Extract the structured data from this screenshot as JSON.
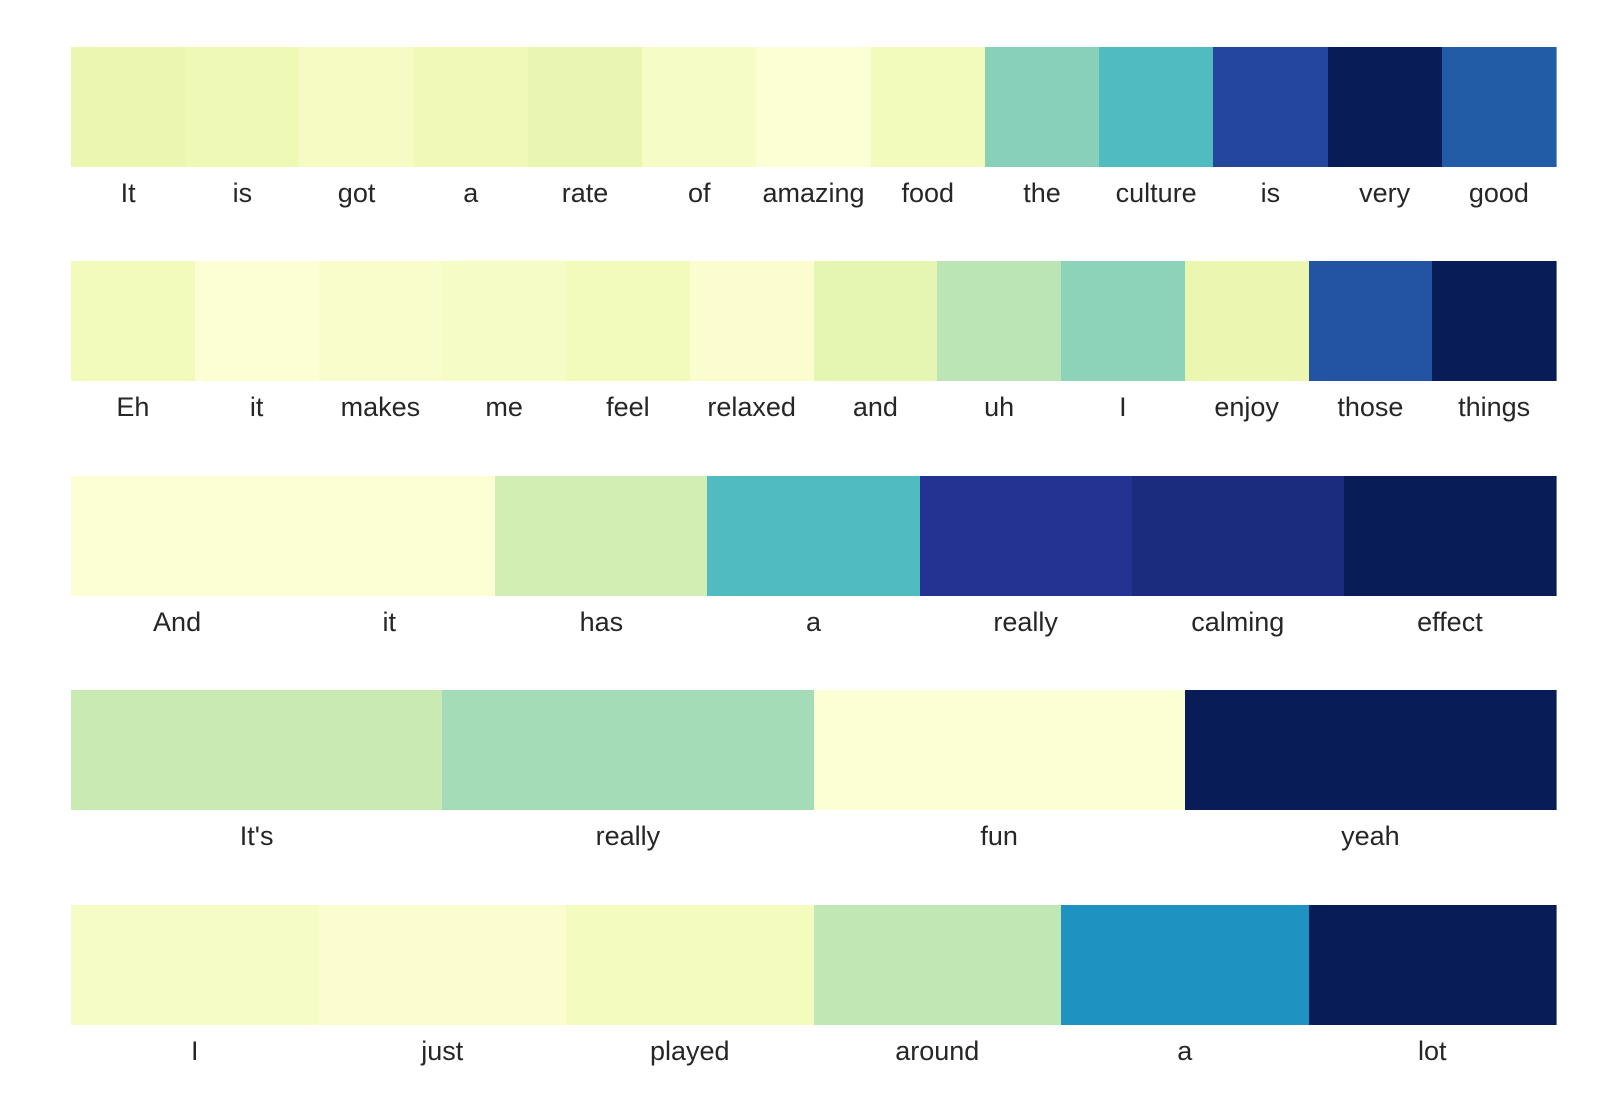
{
  "chart_data": {
    "type": "heatmap",
    "title": "",
    "colormap": "YlGnBu",
    "legend": "none",
    "grid": false,
    "rows": [
      {
        "tokens": [
          "It",
          "is",
          "got",
          "a",
          "rate",
          "of",
          "amazing",
          "food",
          "the",
          "culture",
          "is",
          "very",
          "good"
        ],
        "values": [
          0.13,
          0.11,
          0.07,
          0.1,
          0.14,
          0.06,
          0.02,
          0.09,
          0.36,
          0.47,
          0.82,
          1.0,
          0.76
        ]
      },
      {
        "tokens": [
          "Eh",
          "it",
          "makes",
          "me",
          "feel",
          "relaxed",
          "and",
          "uh",
          "I",
          "enjoy",
          "those",
          "things"
        ],
        "values": [
          0.09,
          0.02,
          0.04,
          0.06,
          0.09,
          0.03,
          0.15,
          0.27,
          0.35,
          0.13,
          0.78,
          1.0
        ]
      },
      {
        "tokens": [
          "And",
          "it",
          "has",
          "a",
          "really",
          "calming",
          "effect"
        ],
        "values": [
          0.02,
          0.02,
          0.21,
          0.47,
          0.88,
          0.92,
          1.0
        ]
      },
      {
        "tokens": [
          "It's",
          "really",
          "fun",
          "yeah"
        ],
        "values": [
          0.24,
          0.31,
          0.02,
          1.0
        ]
      },
      {
        "tokens": [
          "I",
          "just",
          "played",
          "around",
          "a",
          "lot"
        ],
        "values": [
          0.06,
          0.03,
          0.08,
          0.26,
          0.62,
          1.0
        ]
      }
    ]
  }
}
